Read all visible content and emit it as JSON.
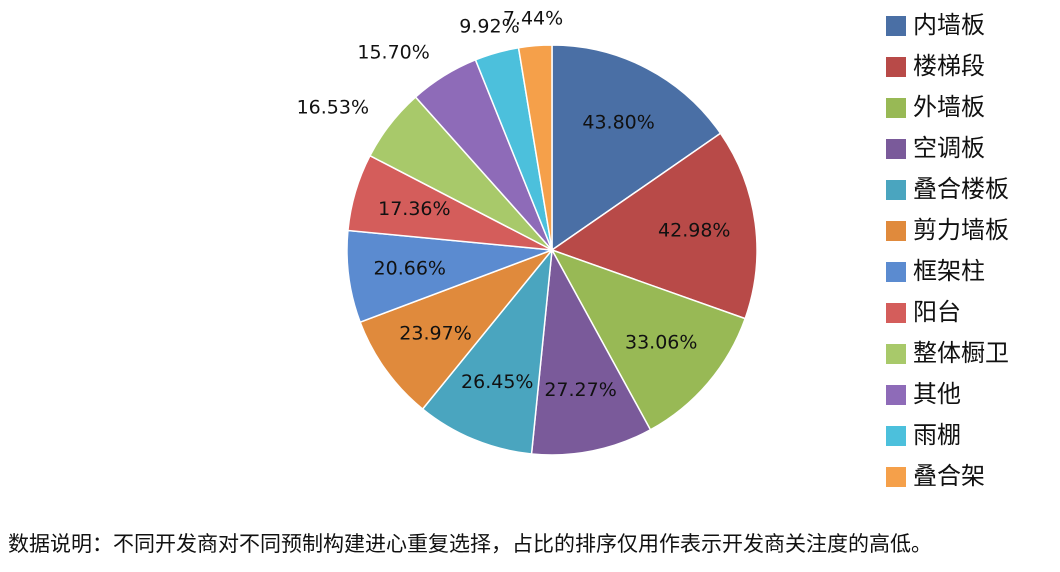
{
  "chart_data": {
    "type": "pie",
    "categories": [
      "内墙板",
      "楼梯段",
      "外墙板",
      "空调板",
      "叠合楼板",
      "剪力墙板",
      "框架柱",
      "阳台",
      "整体橱卫",
      "其他",
      "雨棚",
      "叠合架"
    ],
    "values": [
      43.8,
      42.98,
      33.06,
      27.27,
      26.45,
      23.97,
      20.66,
      17.36,
      16.53,
      15.7,
      9.92,
      7.44
    ],
    "value_labels": [
      "43.80%",
      "42.98%",
      "33.06%",
      "27.27%",
      "26.45%",
      "23.97%",
      "20.66%",
      "17.36%",
      "16.53%",
      "15.70%",
      "9.92%",
      "7.44%"
    ],
    "colors": [
      "#4a6fa5",
      "#b84a48",
      "#98b955",
      "#7a5a9a",
      "#4aa5bf",
      "#e08a3c",
      "#5b8bd0",
      "#d45d5b",
      "#a8c96a",
      "#8e6bb8",
      "#4cc0dc",
      "#f5a04a"
    ],
    "legend": "right",
    "note": "数据说明：不同开发商对不同预制构建进心重复选择，占比的排序仅用作表示开发商关注度的高低。"
  }
}
